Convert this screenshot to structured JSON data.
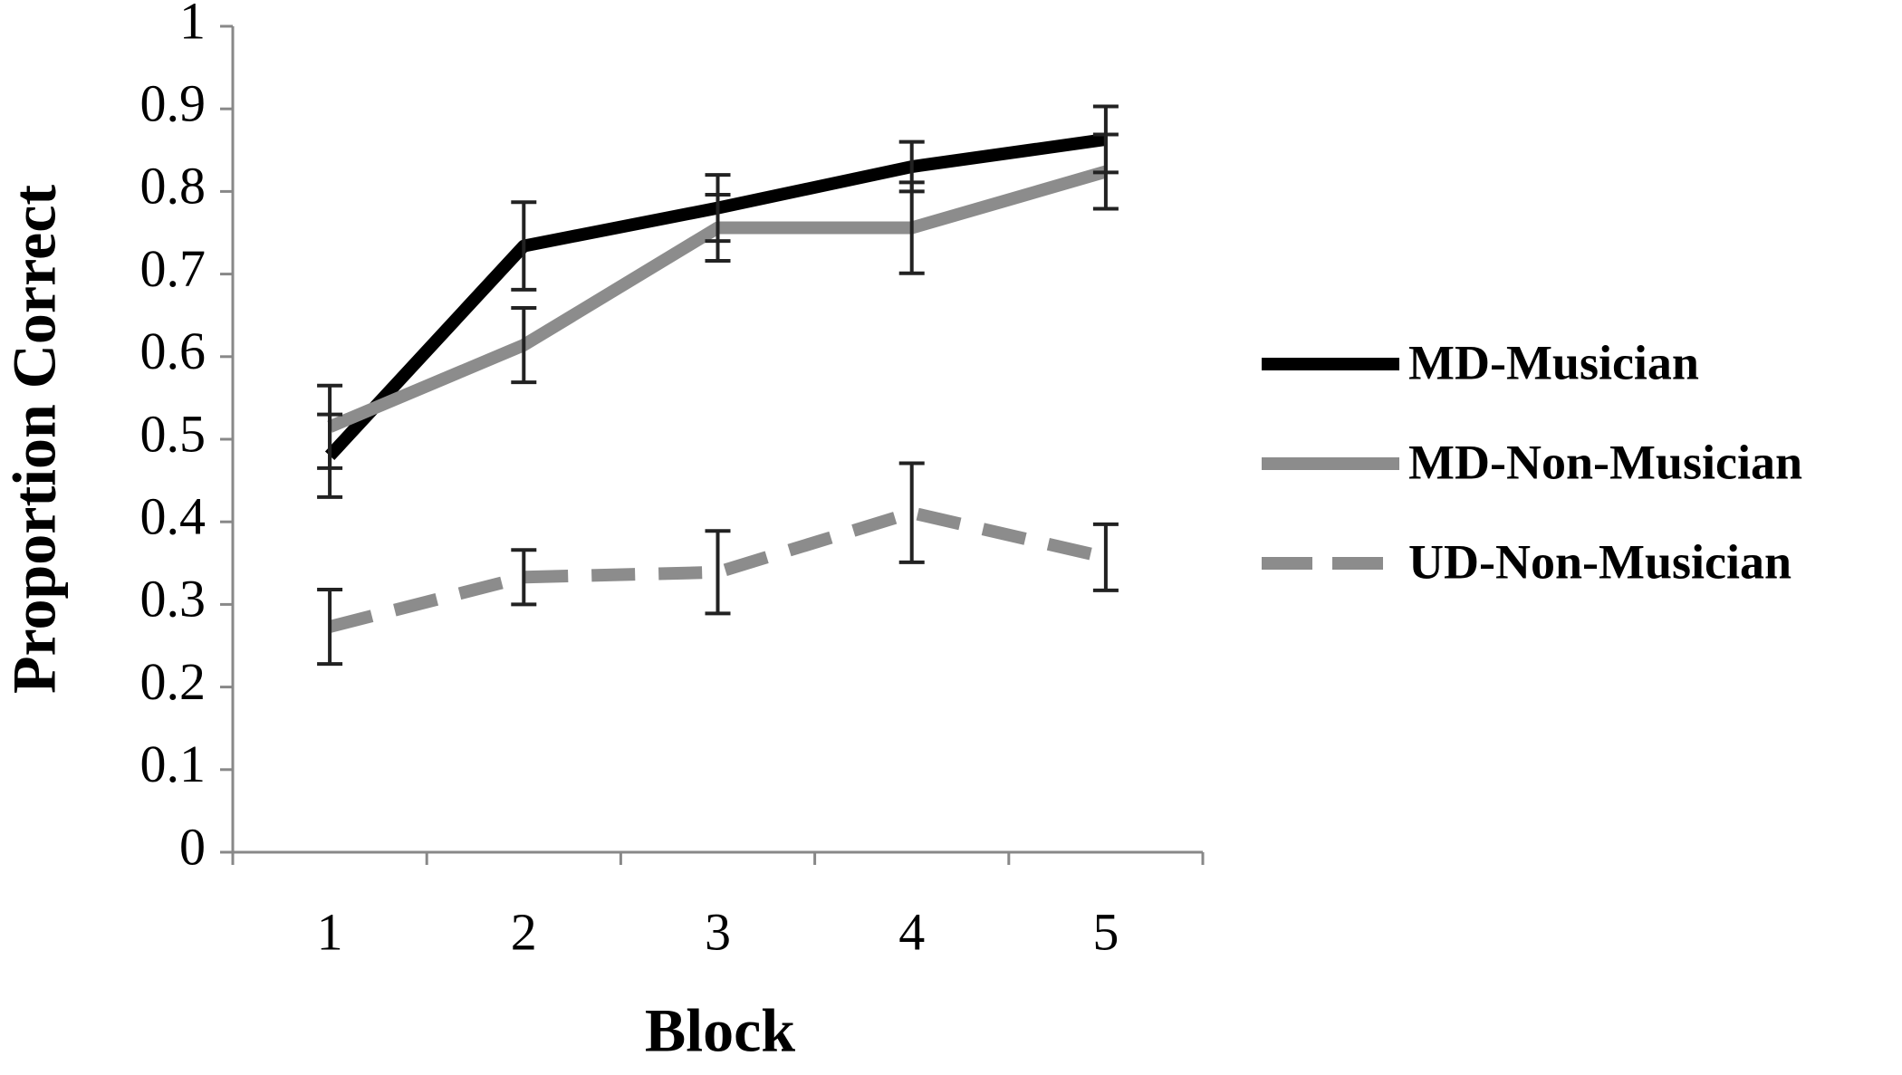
{
  "chart_data": {
    "type": "line",
    "x_label": "Block",
    "y_label": "Proportion Correct",
    "categories": [
      "1",
      "2",
      "3",
      "4",
      "5"
    ],
    "series": [
      {
        "name": "MD-Musician",
        "color": "#000000",
        "linestyle": "solid",
        "values": [
          0.48,
          0.734,
          0.78,
          0.83,
          0.863
        ],
        "errors": [
          0.05,
          0.053,
          0.04,
          0.03,
          0.04
        ]
      },
      {
        "name": "MD-Non-Musician",
        "color": "#8c8c8c",
        "linestyle": "solid",
        "values": [
          0.515,
          0.614,
          0.756,
          0.756,
          0.824
        ],
        "errors": [
          0.05,
          0.045,
          0.04,
          0.055,
          0.045
        ]
      },
      {
        "name": "UD-Non-Musician",
        "color": "#8c8c8c",
        "linestyle": "dashed",
        "values": [
          0.273,
          0.333,
          0.339,
          0.411,
          0.357
        ],
        "errors": [
          0.045,
          0.033,
          0.05,
          0.06,
          0.04
        ]
      }
    ],
    "ylim": [
      0,
      1
    ],
    "yticks": [
      0,
      0.1,
      0.2,
      0.3,
      0.4,
      0.5,
      0.6,
      0.7,
      0.8,
      0.9,
      1
    ],
    "grid": false,
    "legend": "right"
  }
}
